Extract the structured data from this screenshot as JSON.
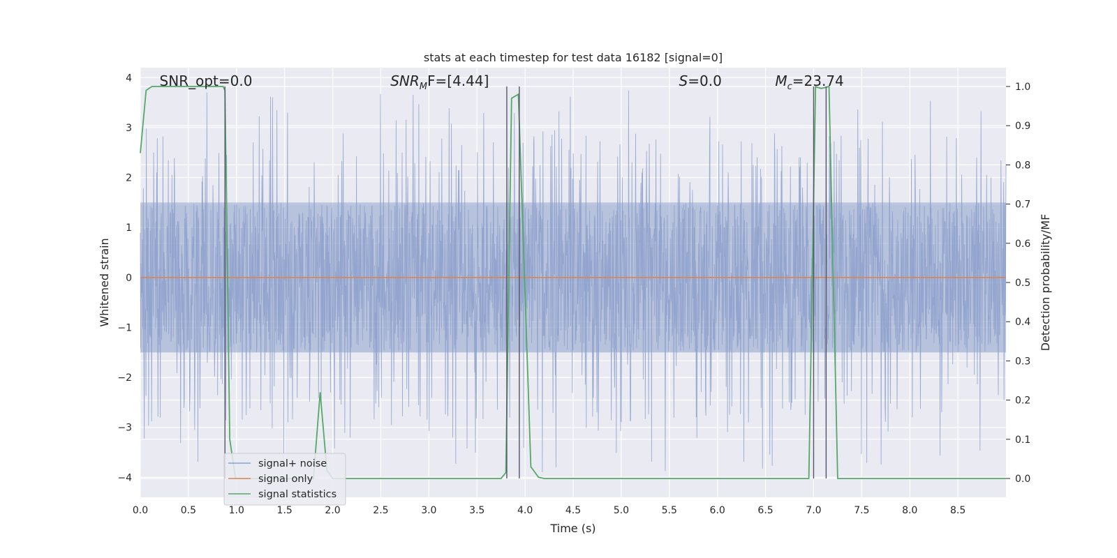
{
  "chart_data": {
    "type": "line",
    "title": "stats at each timestep for test data 16182 [signal=0]",
    "xlabel": "Time (s)",
    "ylabel": "Whitened strain",
    "y2label": "Detection probability/MF",
    "xlim": [
      0.0,
      9.0
    ],
    "ylim": [
      -4.4,
      4.2
    ],
    "y2lim": [
      -0.048,
      1.048
    ],
    "x_ticks": [
      0.0,
      0.5,
      1.0,
      1.5,
      2.0,
      2.5,
      3.0,
      3.5,
      4.0,
      4.5,
      5.0,
      5.5,
      6.0,
      6.5,
      7.0,
      7.5,
      8.0,
      8.5
    ],
    "x_tick_labels": [
      "0.0",
      "0.5",
      "1.0",
      "1.5",
      "2.0",
      "2.5",
      "3.0",
      "3.5",
      "4.0",
      "4.5",
      "5.0",
      "5.5",
      "6.0",
      "6.5",
      "7.0",
      "7.5",
      "8.0",
      "8.5"
    ],
    "y_ticks": [
      4,
      3,
      2,
      1,
      0,
      -1,
      -2,
      -3,
      -4
    ],
    "y_tick_labels": [
      "4",
      "3",
      "2",
      "1",
      "0",
      "−1",
      "−2",
      "−3",
      "−4"
    ],
    "y2_ticks": [
      1.0,
      0.9,
      0.8,
      0.7,
      0.6,
      0.5,
      0.4,
      0.3,
      0.2,
      0.1,
      0.0
    ],
    "y2_tick_labels": [
      "1.0",
      "0.9",
      "0.8",
      "0.7",
      "0.6",
      "0.5",
      "0.4",
      "0.3",
      "0.2",
      "0.1",
      "0.0"
    ],
    "grid": true,
    "series": [
      {
        "name": "signal+ noise",
        "axis": "left",
        "color": "#8da0cb",
        "style": "noise band",
        "dense_range": [
          -1.5,
          1.5
        ],
        "spike_range": [
          -3.9,
          3.8
        ]
      },
      {
        "name": "signal only",
        "axis": "left",
        "color": "#dd8452",
        "x": [
          0.0,
          9.0
        ],
        "y": [
          0.0,
          0.0
        ]
      },
      {
        "name": "signal statistics",
        "axis": "right",
        "color": "#55a868",
        "x": [
          0.0,
          0.06,
          0.12,
          0.86,
          0.88,
          0.93,
          0.99,
          1.8,
          1.87,
          1.94,
          2.0,
          3.75,
          3.8,
          3.86,
          3.93,
          4.06,
          4.14,
          4.2,
          6.95,
          7.02,
          7.08,
          7.16,
          7.25,
          7.32,
          9.0
        ],
        "y": [
          0.83,
          0.99,
          1.0,
          1.0,
          0.99,
          0.1,
          0.0,
          0.0,
          0.22,
          0.02,
          0.0,
          0.0,
          0.015,
          0.97,
          0.98,
          0.03,
          0.003,
          0.0,
          0.0,
          0.999,
          0.995,
          1.0,
          0.0,
          0.0,
          0.0
        ]
      }
    ],
    "vertical_markers_x": [
      0.88,
      3.81,
      3.94,
      7.0,
      7.13
    ],
    "annotations": [
      {
        "text": "SNR_opt=0.0",
        "x": 0.2
      },
      {
        "text": "F=[4.44]",
        "x": 2.6,
        "prefix": "SNR",
        "sub": "M"
      },
      {
        "text": "=0.0",
        "x": 5.6,
        "prefix": "S",
        "sub": ""
      },
      {
        "text": "=23.74",
        "x": 6.6,
        "prefix": "M",
        "sub": "c"
      }
    ],
    "legend": {
      "placement": "lower-left",
      "entries": [
        "signal+ noise",
        "signal only",
        "signal statistics"
      ]
    }
  }
}
